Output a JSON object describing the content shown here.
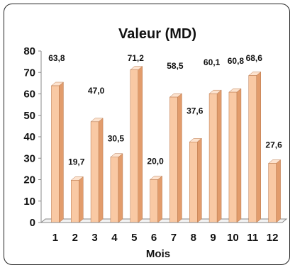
{
  "chart_data": {
    "type": "bar",
    "title": "Valeur (MD)",
    "xlabel": "Mois",
    "ylabel": "",
    "categories": [
      "1",
      "2",
      "3",
      "4",
      "5",
      "6",
      "7",
      "8",
      "9",
      "10",
      "11",
      "12"
    ],
    "values": [
      63.8,
      19.7,
      47.0,
      30.5,
      71.2,
      20.0,
      58.5,
      37.6,
      60.1,
      60.8,
      68.6,
      27.6
    ],
    "value_labels": [
      "63,8",
      "19,7",
      "47,0",
      "30,5",
      "71,2",
      "20,0",
      "58,5",
      "37,6",
      "60,1",
      "60,8",
      "68,6",
      "27,6"
    ],
    "ylim": [
      0,
      80
    ],
    "yticks": [
      "0",
      "10",
      "20",
      "30",
      "40",
      "50",
      "60",
      "70",
      "80"
    ],
    "grid": false,
    "legend": "none",
    "colors": {
      "bar_front": "#f9c9a4",
      "bar_side": "#e29c6c",
      "bar_top": "#fde3cf",
      "bar_edge": "#b8764a",
      "axis": "#888888"
    }
  }
}
